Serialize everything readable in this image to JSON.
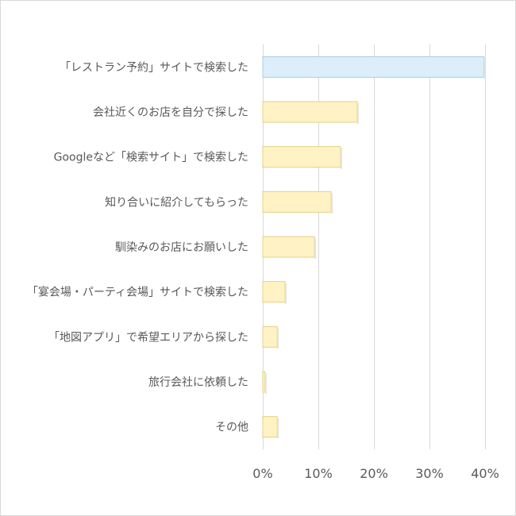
{
  "chart_data": {
    "type": "bar",
    "orientation": "horizontal",
    "categories": [
      "「レストラン予約」サイトで検索した",
      "会社近くのお店を自分で探した",
      "Googleなど「検索サイト」で検索した",
      "知り合いに紹介してもらった",
      "馴染みのお店にお願いした",
      "「宴会場・パーティ会場」サイトで検索した",
      "「地図アプリ」で希望エリアから探した",
      "旅行会社に依頼した",
      "その他"
    ],
    "values": [
      39.8,
      17.0,
      14.0,
      12.3,
      9.3,
      4.0,
      2.6,
      0.4,
      2.6
    ],
    "highlight_index": 0,
    "colors": {
      "highlight_fill": "#dbeef9",
      "highlight_stroke": "#a9cde3",
      "bar_fill": "#fff2c4",
      "bar_stroke": "#e6cf86",
      "grid": "#d9d9d9",
      "text": "#595959"
    },
    "xlim": [
      0,
      40
    ],
    "xticks": [
      0,
      10,
      20,
      30,
      40
    ],
    "xtick_labels": [
      "0%",
      "10%",
      "20%",
      "30%",
      "40%"
    ],
    "grid": true,
    "title": "",
    "xlabel": "",
    "ylabel": ""
  }
}
